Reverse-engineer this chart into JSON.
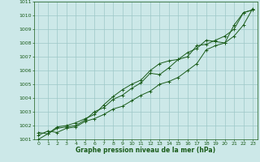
{
  "x": [
    0,
    1,
    2,
    3,
    4,
    5,
    6,
    7,
    8,
    9,
    10,
    11,
    12,
    13,
    14,
    15,
    16,
    17,
    18,
    19,
    20,
    21,
    22,
    23
  ],
  "line1": [
    1001.3,
    1001.6,
    1001.5,
    1001.8,
    1001.9,
    1002.3,
    1002.5,
    1002.8,
    1003.2,
    1003.4,
    1003.8,
    1004.2,
    1004.5,
    1005.0,
    1005.2,
    1005.5,
    1006.0,
    1006.5,
    1007.5,
    1007.8,
    1008.0,
    1009.3,
    1010.2,
    1010.4
  ],
  "line2": [
    1001.5,
    1001.4,
    1001.9,
    1002.0,
    1002.2,
    1002.5,
    1002.8,
    1003.5,
    1004.1,
    1004.6,
    1005.0,
    1005.3,
    1006.0,
    1006.5,
    1006.7,
    1006.8,
    1007.0,
    1007.8,
    1007.9,
    1008.2,
    1008.5,
    1009.0,
    1010.2,
    1010.4
  ],
  "line3": [
    1001.0,
    1001.4,
    1001.8,
    1001.9,
    1002.0,
    1002.4,
    1003.0,
    1003.3,
    1003.9,
    1004.2,
    1004.7,
    1005.1,
    1005.8,
    1005.7,
    1006.2,
    1006.8,
    1007.3,
    1007.6,
    1008.2,
    1008.1,
    1008.0,
    1008.5,
    1009.3,
    1010.5
  ],
  "line_color": "#1a5c1a",
  "bg_color": "#cce8e8",
  "grid_color": "#9dc8c8",
  "xlabel": "Graphe pression niveau de la mer (hPa)",
  "ylim": [
    1001,
    1011
  ],
  "xlim": [
    -0.5,
    23.5
  ],
  "yticks": [
    1001,
    1002,
    1003,
    1004,
    1005,
    1006,
    1007,
    1008,
    1009,
    1010,
    1011
  ],
  "xticks": [
    0,
    1,
    2,
    3,
    4,
    5,
    6,
    7,
    8,
    9,
    10,
    11,
    12,
    13,
    14,
    15,
    16,
    17,
    18,
    19,
    20,
    21,
    22,
    23
  ],
  "tick_fontsize": 4.5,
  "xlabel_fontsize": 5.5
}
